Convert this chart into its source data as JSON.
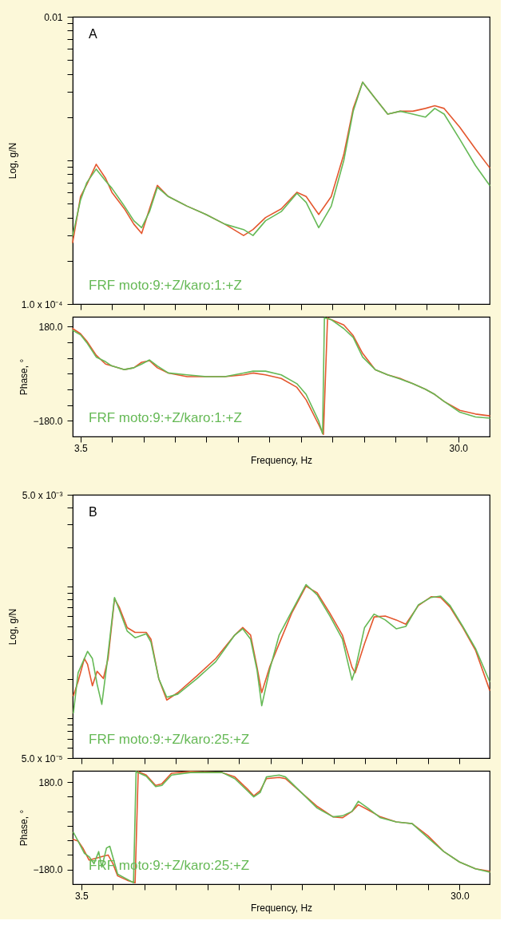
{
  "chart_data": [
    {
      "type": "line",
      "ylabel": "Log, g/N",
      "log": true,
      "tick_labels": "y",
      "annotations": [
        "A"
      ],
      "xlim": [
        2.95,
        32.2
      ],
      "xticks": [
        {
          "value": 3.5,
          "label": null
        },
        {
          "value": 5.71,
          "label": null
        },
        {
          "value": 7.92,
          "label": null
        },
        {
          "value": 10.13,
          "label": null
        },
        {
          "value": 12.33,
          "label": null
        },
        {
          "value": 14.54,
          "label": null
        },
        {
          "value": 16.75,
          "label": null
        },
        {
          "value": 18.96,
          "label": null
        },
        {
          "value": 21.17,
          "label": null
        },
        {
          "value": 23.38,
          "label": null
        },
        {
          "value": 25.58,
          "label": null
        },
        {
          "value": 27.79,
          "label": null
        },
        {
          "value": 30,
          "label": null
        }
      ],
      "ylim": [
        0.0001,
        0.01
      ],
      "yticks": [
        {
          "value": 0.0001,
          "label": "1.0 x 10⁻⁴"
        },
        {
          "value": 0.0002,
          "label": null
        },
        {
          "value": 0.0003,
          "label": null
        },
        {
          "value": 0.0004,
          "label": null
        },
        {
          "value": 0.0005,
          "label": null
        },
        {
          "value": 0.0006,
          "label": null
        },
        {
          "value": 0.0007,
          "label": null
        },
        {
          "value": 0.0008,
          "label": null
        },
        {
          "value": 0.0009,
          "label": null
        },
        {
          "value": 0.001,
          "label": null
        },
        {
          "value": 0.002,
          "label": null
        },
        {
          "value": 0.003,
          "label": null
        },
        {
          "value": 0.004,
          "label": null
        },
        {
          "value": 0.005,
          "label": null
        },
        {
          "value": 0.006,
          "label": null
        },
        {
          "value": 0.007,
          "label": null
        },
        {
          "value": 0.008,
          "label": null
        },
        {
          "value": 0.009,
          "label": null
        },
        0.01
      ],
      "series": [
        {
          "color": "#e4572e",
          "x": [
            2.95,
            3.5,
            3.94,
            4.6,
            5.26,
            5.7,
            6.58,
            7.24,
            7.79,
            8.34,
            8.89,
            9.66,
            10.98,
            12.3,
            13.62,
            14.94,
            15.6,
            16.48,
            17.58,
            18.68,
            19.33,
            20.21,
            21.09,
            21.97,
            22.63,
            23.29,
            24.17,
            25.05,
            25.93,
            26.81,
            27.69,
            28.35,
            29.01,
            30.11,
            31.21,
            32.2
          ],
          "values": [
            0.000268,
            0.00056,
            0.00068,
            0.00094,
            0.00075,
            0.0006,
            0.00046,
            0.00036,
            0.00031,
            0.00046,
            0.00067,
            0.00056,
            0.00048,
            0.00042,
            0.00036,
            0.0003,
            0.00033,
            0.0004,
            0.00046,
            0.0006,
            0.00056,
            0.00042,
            0.00056,
            0.0011,
            0.0023,
            0.0035,
            0.0027,
            0.0021,
            0.0022,
            0.0022,
            0.0023,
            0.0024,
            0.0023,
            0.0017,
            0.0012,
            0.00089
          ]
        },
        {
          "name": "FRF moto:9:+Z/karo:1:+Z",
          "color": "#66b956",
          "x": [
            2.95,
            3.5,
            3.94,
            4.6,
            5.26,
            5.7,
            6.58,
            7.24,
            7.79,
            8.34,
            8.89,
            9.66,
            10.98,
            12.3,
            13.62,
            14.94,
            15.6,
            16.48,
            17.58,
            18.68,
            19.33,
            20.21,
            21.09,
            21.97,
            22.63,
            23.29,
            24.17,
            25.05,
            25.93,
            26.81,
            27.69,
            28.35,
            29.01,
            30.11,
            31.21,
            32.2
          ],
          "values": [
            0.0003,
            0.00053,
            0.0007,
            0.00087,
            0.00072,
            0.00064,
            0.00048,
            0.00038,
            0.00034,
            0.00044,
            0.00065,
            0.00056,
            0.00048,
            0.00042,
            0.00036,
            0.00033,
            0.0003,
            0.00038,
            0.00044,
            0.00059,
            0.00051,
            0.00034,
            0.00048,
            0.001,
            0.0022,
            0.0035,
            0.0027,
            0.0021,
            0.0022,
            0.0021,
            0.002,
            0.0023,
            0.0021,
            0.0014,
            0.00092,
            0.00067
          ]
        }
      ]
    },
    {
      "type": "line",
      "xlabel": "Frequency, Hz",
      "ylabel": "Phase, °",
      "xlim": [
        2.95,
        32.2
      ],
      "xticks": [
        3.5,
        {
          "value": 5.71,
          "label": null
        },
        {
          "value": 7.92,
          "label": null
        },
        {
          "value": 10.13,
          "label": null
        },
        {
          "value": 12.33,
          "label": null
        },
        {
          "value": 14.54,
          "label": null
        },
        {
          "value": 16.75,
          "label": null
        },
        {
          "value": 18.96,
          "label": null
        },
        {
          "value": 21.17,
          "label": null
        },
        {
          "value": 23.38,
          "label": null
        },
        {
          "value": 25.58,
          "label": null
        },
        {
          "value": 27.79,
          "label": null
        },
        {
          "value": 30,
          "label": "30.0"
        }
      ],
      "ylim": [
        -240,
        218
      ],
      "yticks": [
        {
          "value": -180,
          "label": "−180.0"
        },
        {
          "value": -120,
          "label": null
        },
        {
          "value": -60,
          "label": null
        },
        {
          "value": 0,
          "label": null
        },
        {
          "value": 60,
          "label": null
        },
        {
          "value": 120,
          "label": null
        },
        {
          "value": 180,
          "label": "180.0"
        }
      ],
      "series": [
        {
          "color": "#e4572e",
          "x": [
            2.95,
            3.5,
            3.94,
            4.6,
            5.26,
            5.7,
            6.58,
            7.24,
            7.79,
            8.34,
            8.89,
            9.66,
            10.98,
            12.3,
            13.62,
            14.94,
            15.6,
            16.48,
            17.58,
            18.68,
            19.33,
            20.21,
            20.54,
            20.83,
            21.09,
            21.97,
            22.63,
            23.29,
            24.17,
            25.05,
            25.93,
            26.81,
            27.69,
            28.35,
            29.01,
            30.11,
            31.21,
            32.2
          ],
          "values": [
            173,
            153,
            125,
            71,
            37,
            30,
            16,
            23,
            44,
            50,
            23,
            3,
            -11,
            -11,
            -11,
            -4,
            3,
            -4,
            -18,
            -52,
            -100,
            -195,
            -232,
            214,
            207,
            187,
            146,
            78,
            16,
            -4,
            -18,
            -38,
            -59,
            -79,
            -106,
            -140,
            -154,
            -161
          ]
        },
        {
          "name": "FRF moto:9:+Z/karo:1:+Z",
          "color": "#66b956",
          "x": [
            2.95,
            3.5,
            3.94,
            4.6,
            5.26,
            5.7,
            6.58,
            7.24,
            7.79,
            8.34,
            8.89,
            9.66,
            10.98,
            12.3,
            13.62,
            14.94,
            15.6,
            16.48,
            17.58,
            18.68,
            19.33,
            20.21,
            20.48,
            20.61,
            21.09,
            21.97,
            22.63,
            23.29,
            24.17,
            25.05,
            25.93,
            26.81,
            27.69,
            28.35,
            29.01,
            30.11,
            31.21,
            32.2
          ],
          "values": [
            166,
            149,
            119,
            64,
            46,
            30,
            16,
            23,
            37,
            53,
            30,
            3,
            -4,
            -11,
            -11,
            3,
            10,
            10,
            -4,
            -38,
            -79,
            -181,
            -229,
            214,
            207,
            173,
            139,
            64,
            16,
            -4,
            -20,
            -38,
            -59,
            -79,
            -106,
            -147,
            -165,
            -170
          ]
        }
      ]
    },
    {
      "type": "line",
      "ylabel": "Log, g/N",
      "log": true,
      "tick_labels": "y",
      "annotations": [
        "B"
      ],
      "xlim": [
        2.9,
        32.1
      ],
      "xticks": [
        {
          "value": 3.5,
          "label": null
        },
        {
          "value": 5.71,
          "label": null
        },
        {
          "value": 7.92,
          "label": null
        },
        {
          "value": 10.13,
          "label": null
        },
        {
          "value": 12.33,
          "label": null
        },
        {
          "value": 14.54,
          "label": null
        },
        {
          "value": 16.75,
          "label": null
        },
        {
          "value": 18.96,
          "label": null
        },
        {
          "value": 21.17,
          "label": null
        },
        {
          "value": 23.38,
          "label": null
        },
        {
          "value": 25.58,
          "label": null
        },
        {
          "value": 27.79,
          "label": null
        },
        {
          "value": 30,
          "label": null
        }
      ],
      "ylim": [
        5e-05,
        0.005
      ],
      "yticks": [
        {
          "value": 5e-05,
          "label": "5.0 x 10⁻⁵"
        },
        {
          "value": 6e-05,
          "label": null
        },
        {
          "value": 7e-05,
          "label": null
        },
        {
          "value": 8e-05,
          "label": null
        },
        {
          "value": 9e-05,
          "label": null
        },
        {
          "value": 0.0001,
          "label": null
        },
        {
          "value": 0.0002,
          "label": null
        },
        {
          "value": 0.0003,
          "label": null
        },
        {
          "value": 0.0004,
          "label": null
        },
        {
          "value": 0.0005,
          "label": null
        },
        {
          "value": 0.0006,
          "label": null
        },
        {
          "value": 0.0007,
          "label": null
        },
        {
          "value": 0.0008,
          "label": null
        },
        {
          "value": 0.0009,
          "label": null
        },
        {
          "value": 0.001,
          "label": null
        },
        {
          "value": 0.002,
          "label": null
        },
        {
          "value": 0.003,
          "label": null
        },
        {
          "value": 0.004,
          "label": null
        },
        {
          "value": 0.005,
          "label": "5.0 x 10⁻³"
        }
      ],
      "series": [
        {
          "color": "#e4572e",
          "x": [
            2.95,
            3.28,
            3.72,
            3.94,
            4.28,
            4.61,
            5.05,
            5.38,
            5.83,
            6.16,
            6.72,
            7.27,
            8.05,
            8.38,
            8.93,
            9.49,
            10.26,
            11.59,
            12.92,
            14.25,
            14.81,
            15.36,
            15.81,
            16.14,
            16.69,
            17.36,
            18.24,
            19.24,
            20.02,
            20.91,
            21.79,
            22.46,
            22.68,
            23.34,
            24.01,
            24.79,
            25.56,
            26.23,
            27.11,
            28.0,
            28.67,
            29.33,
            30.22,
            31.11,
            32.1
          ],
          "values": [
            0.000149,
            0.000191,
            0.000285,
            0.000258,
            0.000177,
            0.000228,
            0.000201,
            0.000285,
            0.00081,
            0.0007,
            0.00049,
            0.00045,
            0.00045,
            0.0004,
            0.0002,
            0.000138,
            0.000157,
            0.00021,
            0.000285,
            0.00043,
            0.00049,
            0.00043,
            0.000245,
            0.000157,
            0.000245,
            0.00037,
            0.00063,
            0.00101,
            0.0009,
            0.00063,
            0.00043,
            0.000245,
            0.000222,
            0.00037,
            0.00059,
            0.0006,
            0.00056,
            0.00052,
            0.00072,
            0.00084,
            0.00083,
            0.0007,
            0.00049,
            0.00033,
            0.000164
          ]
        },
        {
          "name": "FRF moto:9:+Z/karo:25:+Z",
          "color": "#66b956",
          "x": [
            2.95,
            3.28,
            3.94,
            4.28,
            4.61,
            4.94,
            5.27,
            5.83,
            6.16,
            6.72,
            7.27,
            8.05,
            8.38,
            8.93,
            9.49,
            10.26,
            11.59,
            12.92,
            14.25,
            14.81,
            15.36,
            15.81,
            16.14,
            16.69,
            17.36,
            18.24,
            19.24,
            20.02,
            20.91,
            21.79,
            22.46,
            22.68,
            23.34,
            24.01,
            24.79,
            25.56,
            26.23,
            27.11,
            28.0,
            28.67,
            29.33,
            30.22,
            31.11,
            32.1
          ],
          "values": [
            0.00011,
            0.000222,
            0.000323,
            0.000285,
            0.000182,
            0.000128,
            0.000245,
            0.00083,
            0.00067,
            0.00046,
            0.00041,
            0.00044,
            0.00038,
            0.0002,
            0.000145,
            0.000153,
            0.0002,
            0.00027,
            0.00043,
            0.00048,
            0.0004,
            0.000233,
            0.000125,
            0.000233,
            0.00043,
            0.00065,
            0.00104,
            0.00087,
            0.0006,
            0.0004,
            0.000196,
            0.000233,
            0.00049,
            0.00062,
            0.00056,
            0.00048,
            0.0005,
            0.00073,
            0.00083,
            0.00085,
            0.00072,
            0.0005,
            0.00034,
            0.000191
          ]
        }
      ]
    },
    {
      "type": "line",
      "xlabel": "Frequency, Hz",
      "ylabel": "Phase, °",
      "xlim": [
        2.9,
        32.1
      ],
      "xticks": [
        3.5,
        {
          "value": 5.71,
          "label": null
        },
        {
          "value": 7.92,
          "label": null
        },
        {
          "value": 10.13,
          "label": null
        },
        {
          "value": 12.33,
          "label": null
        },
        {
          "value": 14.54,
          "label": null
        },
        {
          "value": 16.75,
          "label": null
        },
        {
          "value": 18.96,
          "label": null
        },
        {
          "value": 21.17,
          "label": null
        },
        {
          "value": 23.38,
          "label": null
        },
        {
          "value": 25.58,
          "label": null
        },
        {
          "value": 27.79,
          "label": null
        },
        {
          "value": 30,
          "label": "30.0"
        }
      ],
      "ylim": [
        -240,
        226
      ],
      "yticks": [
        {
          "value": -180,
          "label": "−180.0"
        },
        {
          "value": -120,
          "label": null
        },
        {
          "value": -60,
          "label": null
        },
        {
          "value": 0,
          "label": null
        },
        {
          "value": 60,
          "label": null
        },
        {
          "value": 120,
          "label": null
        },
        {
          "value": 180,
          "label": "180.0"
        }
      ],
      "series": [
        {
          "color": "#e4572e",
          "x": [
            2.95,
            3.28,
            3.61,
            4.05,
            4.5,
            4.94,
            5.38,
            5.72,
            6.05,
            6.72,
            7.27,
            7.49,
            8.05,
            8.71,
            9.15,
            9.82,
            11.15,
            13.37,
            14.25,
            15.14,
            15.58,
            16.03,
            16.47,
            17.36,
            17.8,
            18.91,
            20.02,
            21.13,
            21.79,
            22.46,
            22.9,
            23.57,
            24.45,
            25.56,
            26.67,
            27.78,
            28.89,
            29.99,
            31.11,
            32.1
          ],
          "values": [
            -56,
            -63,
            -91,
            -141,
            -134,
            -127,
            -120,
            -156,
            -206,
            -224,
            -234,
            223,
            209,
            166,
            173,
            216,
            223,
            219,
            201,
            151,
            123,
            144,
            194,
            199,
            194,
            137,
            80,
            37,
            33,
            59,
            87,
            66,
            37,
            16,
            9,
            -41,
            -106,
            -149,
            -177,
            -187
          ]
        },
        {
          "name": "FRF moto:9:+Z/karo:25:+Z",
          "color": "#66b956",
          "x": [
            2.95,
            3.28,
            3.72,
            4.05,
            4.39,
            4.72,
            4.94,
            5.27,
            5.5,
            6.05,
            6.72,
            7.16,
            7.34,
            8.05,
            8.71,
            9.15,
            9.82,
            11.15,
            13.37,
            14.25,
            15.14,
            15.58,
            16.03,
            16.47,
            17.36,
            17.8,
            18.91,
            20.02,
            21.13,
            21.79,
            22.46,
            22.9,
            23.57,
            24.45,
            25.56,
            26.67,
            27.78,
            28.89,
            29.99,
            31.11,
            32.1
          ],
          "values": [
            -27,
            -63,
            -113,
            -127,
            -156,
            -106,
            -170,
            -91,
            -84,
            -199,
            -220,
            -234,
            223,
            204,
            161,
            166,
            209,
            219,
            219,
            194,
            144,
            119,
            137,
            201,
            209,
            201,
            137,
            73,
            37,
            41,
            59,
            101,
            73,
            33,
            16,
            9,
            -49,
            -106,
            -149,
            -177,
            -191
          ]
        }
      ]
    }
  ]
}
